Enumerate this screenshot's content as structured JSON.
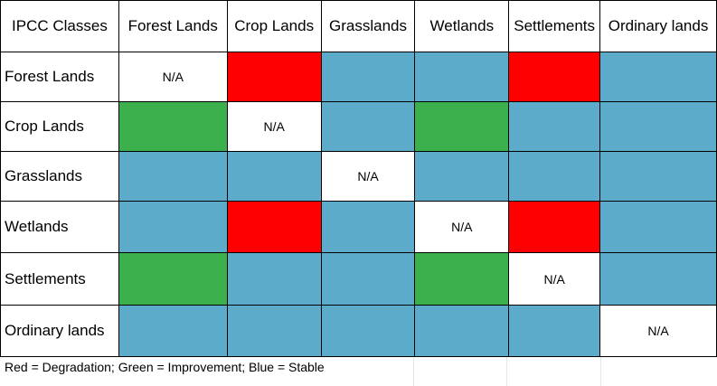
{
  "corner": "IPCC Classes",
  "columns": [
    "Forest Lands",
    "Crop Lands",
    "Grasslands",
    "Wetlands",
    "Settlements",
    "Ordinary lands"
  ],
  "colors": {
    "red": "#ff0000",
    "green": "#3cb04c",
    "blue": "#5dabca",
    "white": "#ffffff"
  },
  "rows": [
    {
      "label": "Forest Lands",
      "cells": [
        "na",
        "red",
        "blue",
        "blue",
        "red",
        "blue"
      ]
    },
    {
      "label": "Crop Lands",
      "cells": [
        "green",
        "na",
        "blue",
        "green",
        "blue",
        "blue"
      ]
    },
    {
      "label": "Grasslands",
      "cells": [
        "blue",
        "blue",
        "na",
        "blue",
        "blue",
        "blue"
      ]
    },
    {
      "label": "Wetlands",
      "cells": [
        "blue",
        "red",
        "blue",
        "na",
        "red",
        "blue"
      ]
    },
    {
      "label": "Settlements",
      "cells": [
        "green",
        "blue",
        "blue",
        "green",
        "na",
        "blue"
      ]
    },
    {
      "label": "Ordinary lands",
      "cells": [
        "blue",
        "blue",
        "blue",
        "blue",
        "blue",
        "na"
      ]
    }
  ],
  "na_text": "N/A",
  "legend": "Red = Degradation; Green = Improvement; Blue = Stable"
}
